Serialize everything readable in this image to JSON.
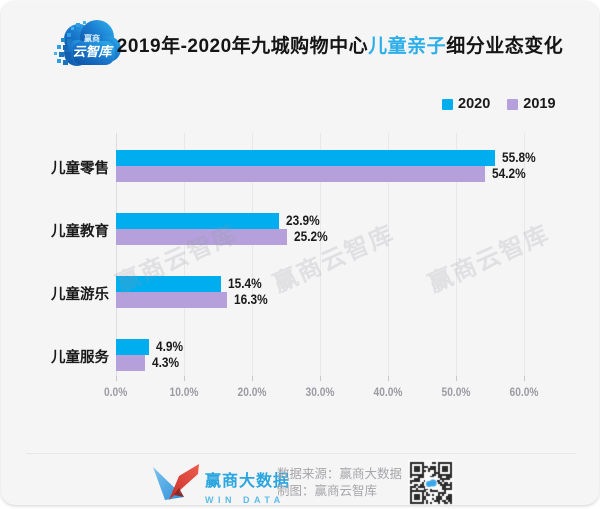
{
  "header": {
    "logo": {
      "line1": "赢商",
      "line2": "云智库"
    },
    "title": {
      "prefix": "2019年-2020年九城购物中心",
      "highlight": "儿童亲子",
      "suffix": "细分业态变化"
    }
  },
  "colors": {
    "bar_2020": "#00AEEF",
    "bar_2019": "#B5A0DB",
    "title_highlight": "#2CAEE8",
    "background": "#F5F5F6"
  },
  "chart_data": {
    "type": "bar",
    "orientation": "horizontal",
    "title": "2019年-2020年九城购物中心儿童亲子细分业态变化",
    "categories": [
      "儿童零售",
      "儿童教育",
      "儿童游乐",
      "儿童服务"
    ],
    "series": [
      {
        "name": "2020",
        "color": "#00AEEF",
        "values": [
          55.8,
          23.9,
          15.4,
          4.9
        ]
      },
      {
        "name": "2019",
        "color": "#B5A0DB",
        "values": [
          54.2,
          25.2,
          16.3,
          4.3
        ]
      }
    ],
    "value_suffix": "%",
    "x_ticks": [
      "0.0%",
      "10.0%",
      "20.0%",
      "30.0%",
      "40.0%",
      "50.0%",
      "60.0%"
    ],
    "xlim": [
      0,
      60
    ],
    "grid": true,
    "legend_position": "top-right"
  },
  "watermark": {
    "text": "赢商云智库"
  },
  "footer": {
    "brand": {
      "name": "赢商大数据",
      "sub": "WIN DATA"
    },
    "source_line1": "数据来源：赢商大数据",
    "source_line2": "制图：赢商云智库",
    "qr_label": "qr-code"
  }
}
